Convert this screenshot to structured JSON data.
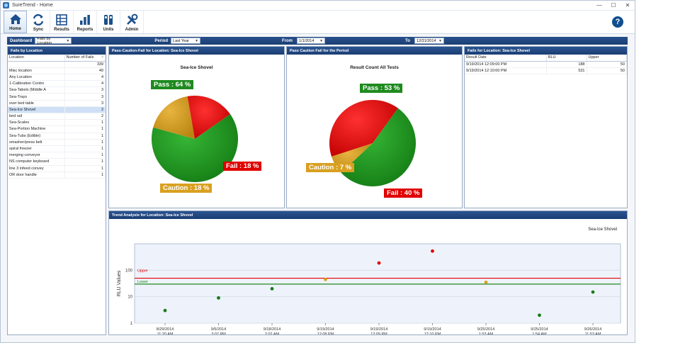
{
  "window": {
    "title": "SureTrend - Home",
    "minimize": "—",
    "maximize": "☐",
    "close": "✕"
  },
  "ribbon": {
    "buttons": [
      {
        "label": "Home",
        "icon": "home-icon",
        "active": true
      },
      {
        "label": "Sync",
        "icon": "sync-icon",
        "active": false
      },
      {
        "label": "Results",
        "icon": "results-icon",
        "active": false
      },
      {
        "label": "Reports",
        "icon": "reports-icon",
        "active": false
      },
      {
        "label": "Units",
        "icon": "units-icon",
        "active": false
      },
      {
        "label": "Admin",
        "icon": "admin-icon",
        "active": false
      }
    ],
    "help": "?"
  },
  "filters": {
    "dashboard_label": "Dashboard",
    "dashboard_value": "Fails by Location",
    "period_label": "Period",
    "period_value": "Last Year",
    "from_label": "From",
    "from_value": "1/1/2014",
    "to_label": "To",
    "to_value": "12/31/2014"
  },
  "fails_by_location": {
    "title": "Fails by Location",
    "col_location": "Location",
    "col_fails": "Number of Fails",
    "rows": [
      [
        "",
        "339"
      ],
      [
        "Misc location",
        "49"
      ],
      [
        "Any Location",
        "4"
      ],
      [
        "1-Calibration Contro",
        "4"
      ],
      [
        "Sea-Tabels (Middle A",
        "3"
      ],
      [
        "Sea-Trays",
        "3"
      ],
      [
        "over bed table",
        "3"
      ],
      [
        "Sea-Ice Shovel",
        "2"
      ],
      [
        "bed rail",
        "2"
      ],
      [
        "Sea-Scales",
        "1"
      ],
      [
        "Sea-Portion Machine",
        "1"
      ],
      [
        "Sea-Tubs (Edible)",
        "1"
      ],
      [
        "smasher/press belt",
        "1"
      ],
      [
        "spiral freezer",
        "1"
      ],
      [
        "merging conveyor",
        "1"
      ],
      [
        "NS computer keyboard",
        "1"
      ],
      [
        "line 3 infeed convey",
        "1"
      ],
      [
        "OR door handle",
        "1"
      ]
    ],
    "selected_index": 7
  },
  "pcf_location": {
    "title": "Pass-Caution-Fail for Location: Sea-Ice Shovel",
    "chart_title": "Sea-Ice Shovel",
    "pass_label": "Pass : 64 %",
    "fail_label": "Fail : 18 %",
    "caution_label": "Caution : 18 %"
  },
  "pcf_period": {
    "title": "Pass Caution Fail for the Period",
    "chart_title": "Result Count All Tests",
    "pass_label": "Pass : 53 %",
    "fail_label": "Fail : 40 %",
    "caution_label": "Caution : 7 %"
  },
  "fails_detail": {
    "title": "Fails for Location: Sea-Ice Shovel",
    "col_date": "Result Date",
    "col_rlu": "RLU",
    "col_upper": "Upper",
    "rows": [
      [
        "9/19/2014 12:09:00 PM",
        "188",
        "50"
      ],
      [
        "9/19/2014 12:10:00 PM",
        "531",
        "50"
      ]
    ]
  },
  "trend": {
    "title": "Trend Analysis for Location: Sea-Ice Shovel",
    "legend": "Sea-Ice Shovel",
    "upper_label": "Upper",
    "lower_label": "Lower",
    "ylabel": "RLU Values"
  },
  "colors": {
    "header_blue": "#1f4680",
    "pass": "#1f8a1f",
    "fail": "#e00000",
    "caution": "#d9a020"
  },
  "chart_data": [
    {
      "type": "pie",
      "title": "Sea-Ice Shovel",
      "labels": [
        "Pass",
        "Caution",
        "Fail"
      ],
      "values": [
        64,
        18,
        18
      ]
    },
    {
      "type": "pie",
      "title": "Result Count All Tests",
      "labels": [
        "Pass",
        "Caution",
        "Fail"
      ],
      "values": [
        53,
        7,
        40
      ]
    },
    {
      "type": "scatter",
      "title": "Sea-Ice Shovel",
      "ylabel": "RLU Values",
      "yscale": "log",
      "ylim": [
        1,
        1000
      ],
      "yticks": [
        1,
        10,
        100
      ],
      "upper": 50,
      "lower": 30,
      "x": [
        "8/29/2014 11:20 AM",
        "9/5/2014 3:07 PM",
        "9/18/2014 2:02 AM",
        "9/19/2014 12:08 PM",
        "9/19/2014 12:09 PM",
        "9/19/2014 12:10 PM",
        "9/25/2014 1:53 AM",
        "9/25/2014 1:54 AM",
        "9/26/2014 11:53 AM"
      ],
      "values": [
        3,
        9,
        20,
        45,
        188,
        531,
        35,
        2,
        15
      ],
      "status": [
        "pass",
        "pass",
        "pass",
        "caution",
        "fail",
        "fail",
        "caution",
        "pass",
        "pass"
      ],
      "grid": true
    }
  ]
}
